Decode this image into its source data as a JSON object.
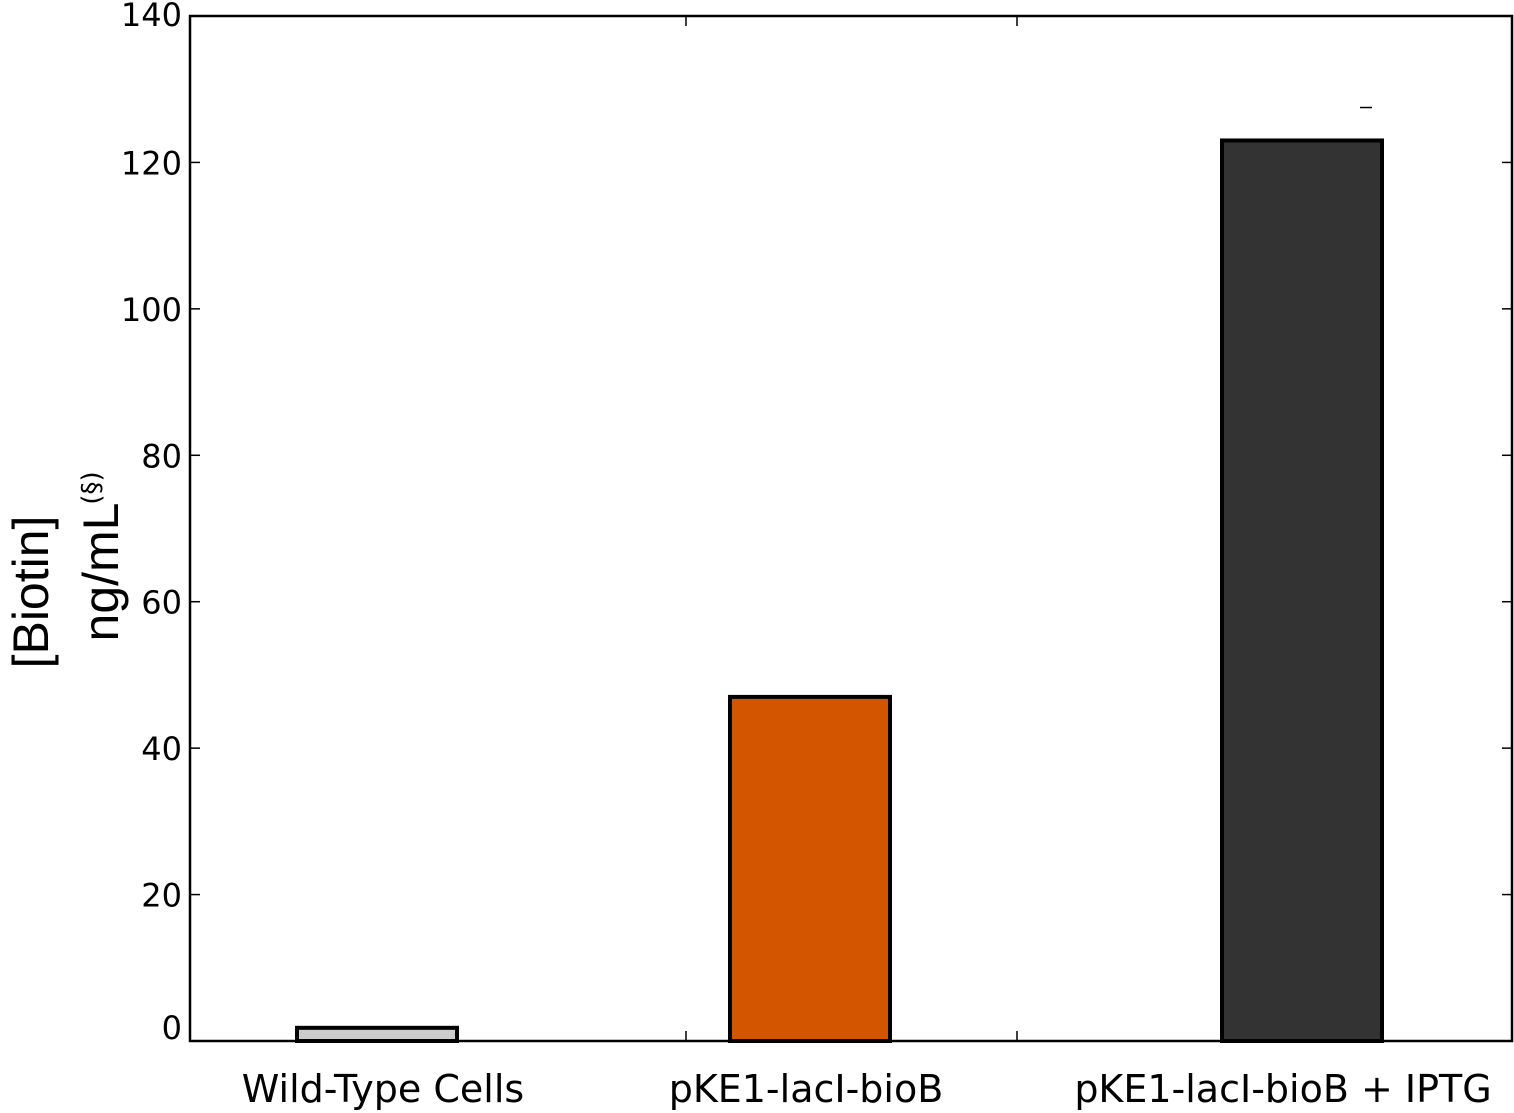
{
  "chart_data": {
    "type": "bar",
    "categories": [
      "Wild-Type Cells",
      "pKE1-lacI-bioB",
      "pKE1-lacI-bioB + IPTG"
    ],
    "values": [
      1.8,
      47,
      123
    ],
    "errors": [
      null,
      null,
      4.5
    ],
    "colors": [
      "#cccccc",
      "#d45500",
      "#333333"
    ],
    "edge_color": "#000000",
    "title": "",
    "xlabel": "",
    "ylabel_line1": "[Biotin]",
    "ylabel_line2": "ng/mL",
    "ylabel_superscript": "(§)",
    "ylim": [
      0,
      140
    ],
    "yticks": [
      0,
      20,
      40,
      60,
      80,
      100,
      120,
      140
    ],
    "grid": false,
    "legend": "none"
  }
}
